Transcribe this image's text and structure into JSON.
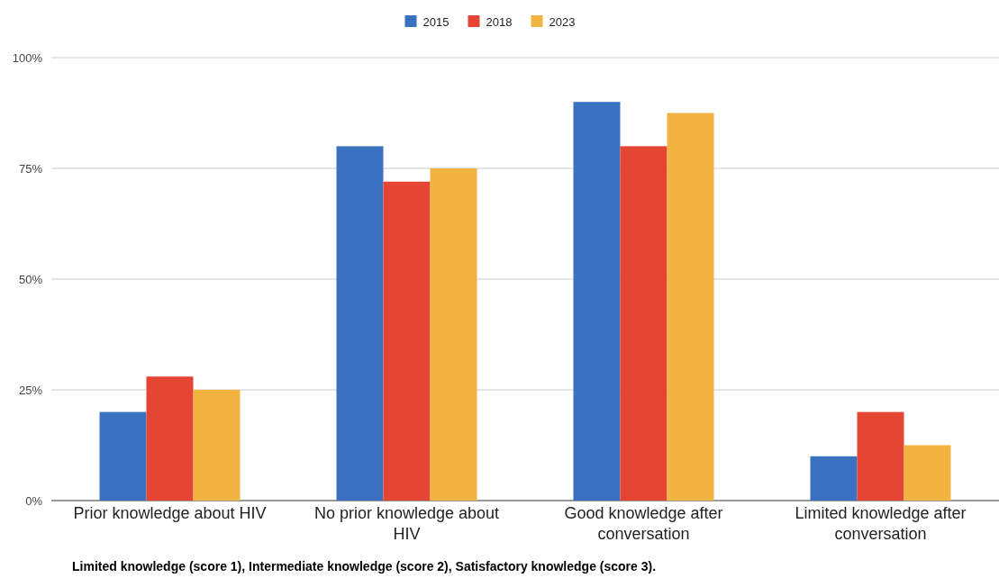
{
  "chart_data": {
    "type": "bar",
    "categories": [
      "Prior knowledge about HIV",
      "No prior knowledge about HIV",
      "Good knowledge after conversation",
      "Limited knowledge after conversation"
    ],
    "series": [
      {
        "name": "2015",
        "color": "#3a71c1",
        "values": [
          20,
          80,
          90,
          10
        ]
      },
      {
        "name": "2018",
        "color": "#e64533",
        "values": [
          28,
          72,
          80,
          20
        ]
      },
      {
        "name": "2023",
        "color": "#f2b441",
        "values": [
          25,
          75,
          87.5,
          12.5
        ]
      }
    ],
    "ylim": [
      0,
      100
    ],
    "yticks": [
      {
        "value": 0,
        "label": "0%"
      },
      {
        "value": 25,
        "label": "25%"
      },
      {
        "value": 50,
        "label": "50%"
      },
      {
        "value": 75,
        "label": "75%"
      },
      {
        "value": 100,
        "label": "100%"
      }
    ],
    "grid": "y",
    "legend": "top",
    "annotations": [
      "Limited knowledge (score 1), Intermediate knowledge (score 2), Satisfactory knowledge (score 3)."
    ]
  }
}
